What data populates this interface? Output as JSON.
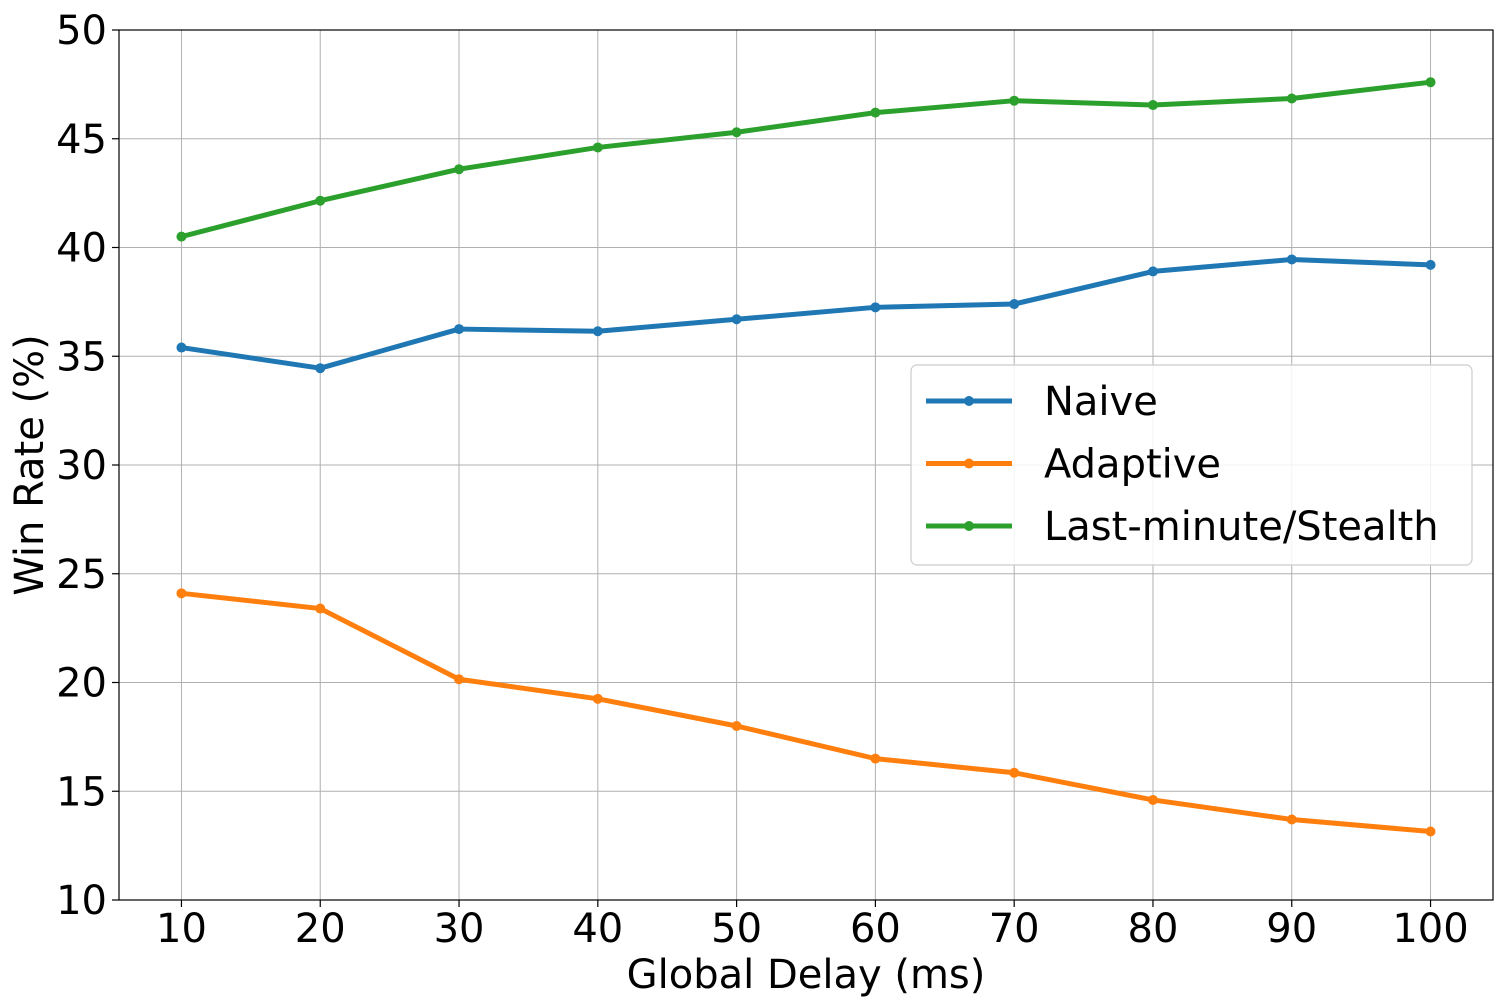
{
  "chart_data": {
    "type": "line",
    "x": [
      10,
      20,
      30,
      40,
      50,
      60,
      70,
      80,
      90,
      100
    ],
    "xlabel": "Global Delay (ms)",
    "ylabel": "Win Rate (%)",
    "xlim": [
      5.5,
      104.5
    ],
    "ylim": [
      10,
      50
    ],
    "xticks": [
      "10",
      "20",
      "30",
      "40",
      "50",
      "60",
      "70",
      "80",
      "90",
      "100"
    ],
    "yticks": [
      "10",
      "15",
      "20",
      "25",
      "30",
      "35",
      "40",
      "45",
      "50"
    ],
    "grid": true,
    "legend_position": "center-right",
    "series": [
      {
        "name": "Naive",
        "color": "#1f77b4",
        "values": [
          35.4,
          34.45,
          36.25,
          36.15,
          36.7,
          37.25,
          37.4,
          38.9,
          39.45,
          39.2
        ]
      },
      {
        "name": "Adaptive",
        "color": "#ff7f0e",
        "values": [
          24.1,
          23.4,
          20.15,
          19.25,
          18.0,
          16.5,
          15.85,
          14.6,
          13.7,
          13.15
        ]
      },
      {
        "name": "Last-minute/Stealth",
        "color": "#2ca02c",
        "values": [
          40.5,
          42.15,
          43.6,
          44.6,
          45.3,
          46.2,
          46.75,
          46.55,
          46.85,
          47.6
        ]
      }
    ]
  }
}
